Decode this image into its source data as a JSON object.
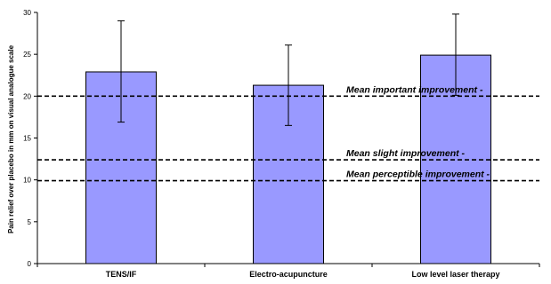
{
  "chart_data": {
    "type": "bar",
    "title": "",
    "xlabel": "",
    "ylabel": "Pain relief over placebo in mm on visual analogue scale",
    "ylim": [
      0,
      30
    ],
    "yticks": [
      0,
      5,
      10,
      15,
      20,
      25,
      30
    ],
    "categories": [
      "TENS/IF",
      "Electro-acupuncture",
      "Low level laser therapy"
    ],
    "values": [
      22.9,
      21.3,
      24.9
    ],
    "error_bars": [
      {
        "low": 16.9,
        "high": 29.0
      },
      {
        "low": 16.5,
        "high": 26.1
      },
      {
        "low": 20.1,
        "high": 29.8
      }
    ],
    "reference_lines": [
      {
        "value": 20.0,
        "label": "Mean important improvement -"
      },
      {
        "value": 12.4,
        "label": "Mean slight improvement -"
      },
      {
        "value": 9.9,
        "label": "Mean perceptible improvement -"
      }
    ],
    "bar_color": "#9999ff",
    "bar_stroke": "#000000",
    "grid": false,
    "legend": "none"
  }
}
